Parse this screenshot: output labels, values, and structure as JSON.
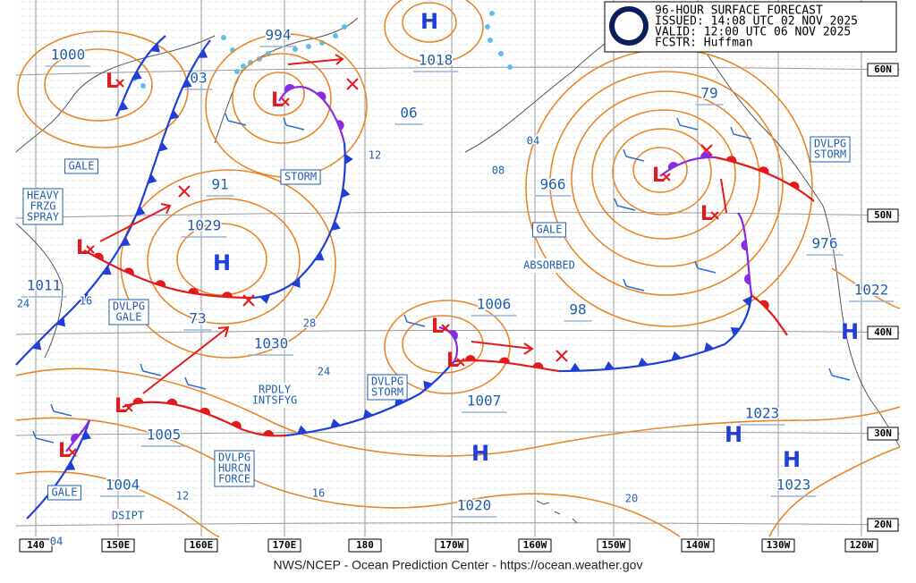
{
  "header": {
    "lines": [
      "96-HOUR SURFACE FORECAST",
      "ISSUED: 14:08 UTC 02 NOV 2025",
      "VALID:  12:00 UTC 06 NOV 2025",
      "FCSTR:  Huffman"
    ]
  },
  "footer": "NWS/NCEP - Ocean Prediction Center - https://ocean.weather.gov",
  "latitudes": [
    "60N",
    "50N",
    "40N",
    "30N",
    "20N"
  ],
  "longitudes": [
    "140",
    "150E",
    "160E",
    "170E",
    "180",
    "170W",
    "160W",
    "150W",
    "140W",
    "130W",
    "120W"
  ],
  "highs": [
    "H",
    "H",
    "H",
    "H",
    "H",
    "H"
  ],
  "lows": [
    "L",
    "L",
    "L",
    "L",
    "L",
    "L",
    "L",
    "L",
    "L"
  ],
  "pressures": [
    "1000",
    "03",
    "994",
    "1018",
    "06",
    "79",
    "91",
    "1029",
    "966",
    "976",
    "1011",
    "1022",
    "73",
    "1030",
    "1006",
    "98",
    "1007",
    "1005",
    "1023",
    "1004",
    "1020",
    "1023"
  ],
  "isobar_labels": [
    "04",
    "08",
    "12",
    "24",
    "16",
    "28",
    "24",
    "12",
    "16",
    "20",
    "04"
  ],
  "annotations": [
    [
      "GALE"
    ],
    [
      "HEAVY",
      "FRZG",
      "SPRAY"
    ],
    [
      "STORM"
    ],
    [
      "DVLPG",
      "GALE"
    ],
    [
      "GALE"
    ],
    [
      "ABSORBED"
    ],
    [
      "DVLPG",
      "STORM"
    ],
    [
      "DVLPG",
      "STORM"
    ],
    [
      "RPDLY",
      "INTSFYG"
    ],
    [
      "DVLPG",
      "HURCN",
      "FORCE"
    ],
    [
      "DSIPT"
    ],
    [
      "GALE"
    ]
  ]
}
